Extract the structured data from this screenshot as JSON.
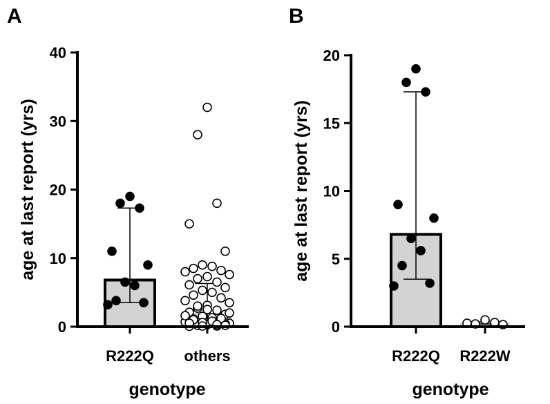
{
  "colors": {
    "bar_fill": "#d3d3d3",
    "axis": "#000000",
    "filled_point": "#000000",
    "open_point_fill": "#ffffff"
  },
  "chart_data": [
    {
      "panel_label": "A",
      "type": "bar",
      "title": "",
      "xlabel": "genotype",
      "ylabel": "age at last report (yrs)",
      "ylim": [
        0,
        40
      ],
      "yticks": [
        0,
        10,
        20,
        30,
        40
      ],
      "categories": [
        "R222Q",
        "others"
      ],
      "bars": [
        {
          "name": "R222Q",
          "value": 6.8,
          "error_low": 3.5,
          "error_high": 17.3,
          "marker": "filled",
          "points": [
            19,
            18,
            17.3,
            11,
            9,
            6.5,
            6,
            3.8,
            3.5,
            3.2
          ]
        },
        {
          "name": "others",
          "value": 2,
          "error_low": 0.2,
          "error_high": 6.3,
          "marker": "open",
          "points": [
            32,
            28,
            18,
            15,
            11,
            9,
            8.8,
            8.5,
            8.2,
            8,
            7.6,
            7.3,
            7,
            6.5,
            6.1,
            5.7,
            5.3,
            5,
            4.6,
            4.2,
            3.8,
            3.5,
            3.1,
            2.7,
            2.4,
            2.1,
            1.8,
            1.5,
            1.3,
            1.1,
            0.9,
            0.7,
            0.5,
            0.3,
            0.2,
            0.1,
            0.05,
            0.4,
            0.6,
            0.8,
            1,
            1.2,
            1.6,
            2,
            2.5,
            3,
            0.3,
            0.5,
            0.2,
            0.1
          ]
        }
      ]
    },
    {
      "panel_label": "B",
      "type": "bar",
      "title": "",
      "xlabel": "genotype",
      "ylabel": "age at last report (yrs)",
      "ylim": [
        0,
        20
      ],
      "yticks": [
        0,
        5,
        10,
        15,
        20
      ],
      "categories": [
        "R222Q",
        "R222W"
      ],
      "bars": [
        {
          "name": "R222Q",
          "value": 6.8,
          "error_low": 3.5,
          "error_high": 17.3,
          "marker": "filled",
          "points": [
            19,
            18,
            17.3,
            9,
            8,
            6.5,
            5.6,
            4.5,
            3.2,
            3
          ]
        },
        {
          "name": "R222W",
          "value": 0.3,
          "error_low": 0.2,
          "error_high": 0.35,
          "marker": "open",
          "points": [
            0.5,
            0.2,
            0.3,
            0.25,
            0.15
          ]
        }
      ]
    }
  ]
}
